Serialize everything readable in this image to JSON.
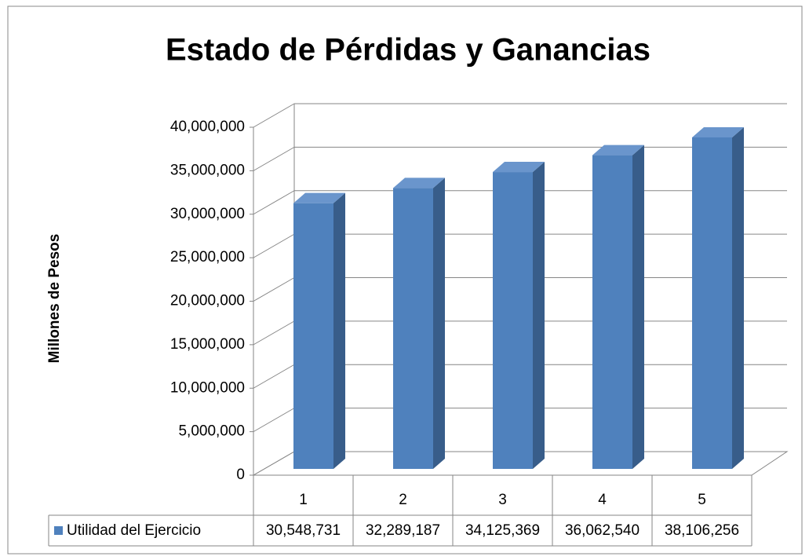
{
  "chart_data": {
    "type": "bar3d",
    "title": "Estado de Pérdidas y Ganancias",
    "y_label": "Millones de Pesos",
    "categories": [
      "1",
      "2",
      "3",
      "4",
      "5"
    ],
    "series": [
      {
        "name": "Utilidad del Ejercicio",
        "color": "#4f81bd",
        "values": [
          30548731,
          32289187,
          34125369,
          36062540,
          38106256
        ],
        "value_labels": [
          "30,548,731",
          "32,289,187",
          "34,125,369",
          "36,062,540",
          "38,106,256"
        ]
      }
    ],
    "ylim": [
      0,
      40000000
    ],
    "yticks": [
      0,
      {
        "value": 5000000,
        "label": "5,000,000"
      },
      {
        "value": 10000000,
        "label": "10,000,000"
      },
      {
        "value": 15000000,
        "label": "15,000,000"
      },
      {
        "value": 20000000,
        "label": "20,000,000"
      },
      {
        "value": 25000000,
        "label": "25,000,000"
      },
      {
        "value": 30000000,
        "label": "30,000,000"
      },
      {
        "value": 35000000,
        "label": "35,000,000"
      },
      {
        "value": 40000000,
        "label": "40,000,000"
      }
    ],
    "grid": true
  }
}
